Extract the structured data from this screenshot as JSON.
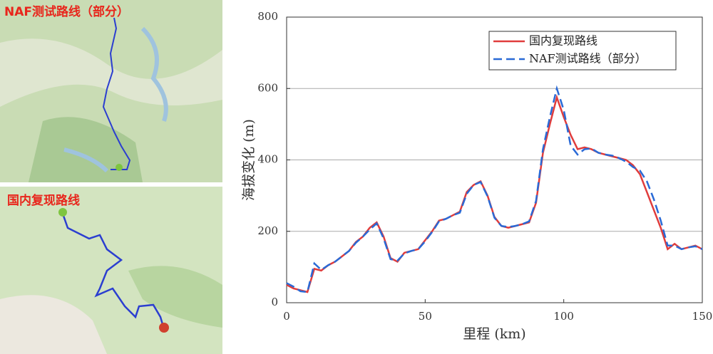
{
  "maps": [
    {
      "label": "NAF测试路线（部分）"
    },
    {
      "label": "国内复现路线"
    }
  ],
  "chart_data": {
    "type": "line",
    "x_label": "里程 (km)",
    "y_label": "海拔变化 (m)",
    "x": [
      0,
      2.5,
      5,
      7.5,
      10,
      12.5,
      15,
      17.5,
      20,
      22.5,
      25,
      27.5,
      30,
      32.5,
      35,
      37.5,
      40,
      42.5,
      45,
      47.5,
      50,
      52.5,
      55,
      57.5,
      60,
      62.5,
      65,
      67.5,
      70,
      72.5,
      75,
      77.5,
      80,
      82.5,
      85,
      87.5,
      90,
      92.5,
      95,
      97.5,
      100,
      102.5,
      105,
      107.5,
      110,
      112.5,
      115,
      117.5,
      120,
      122.5,
      125,
      127.5,
      130,
      132.5,
      135,
      137.5,
      140,
      142.5,
      145,
      147.5,
      150
    ],
    "series": [
      {
        "name": "国内复现路线",
        "color": "#e03c3c",
        "dash": false,
        "values": [
          50,
          40,
          35,
          30,
          95,
          90,
          105,
          115,
          130,
          145,
          170,
          185,
          210,
          225,
          185,
          125,
          115,
          140,
          145,
          150,
          175,
          200,
          230,
          235,
          245,
          255,
          310,
          330,
          340,
          300,
          240,
          215,
          210,
          215,
          220,
          225,
          280,
          420,
          500,
          575,
          520,
          470,
          430,
          435,
          430,
          420,
          415,
          410,
          405,
          400,
          385,
          360,
          310,
          260,
          210,
          150,
          165,
          150,
          155,
          160,
          150
        ]
      },
      {
        "name": "NAF测试路线（部分）",
        "color": "#2a6ad6",
        "dash": true,
        "values": [
          55,
          45,
          32,
          30,
          110,
          92,
          105,
          115,
          130,
          145,
          168,
          185,
          205,
          222,
          180,
          122,
          118,
          138,
          145,
          150,
          172,
          198,
          228,
          235,
          245,
          252,
          305,
          330,
          338,
          298,
          238,
          215,
          212,
          215,
          220,
          228,
          285,
          430,
          520,
          600,
          540,
          440,
          415,
          430,
          432,
          420,
          415,
          412,
          405,
          395,
          380,
          370,
          340,
          290,
          230,
          160,
          160,
          150,
          155,
          158,
          150
        ]
      }
    ],
    "xlim": [
      0,
      150
    ],
    "xticks": [
      0,
      50,
      100,
      150
    ],
    "ylim": [
      0,
      800
    ],
    "yticks": [
      0,
      200,
      400,
      600,
      800
    ],
    "grid": true,
    "legend": "upper right"
  }
}
